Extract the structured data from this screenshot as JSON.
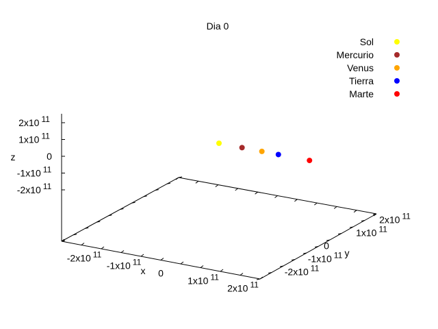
{
  "chart_data": {
    "type": "scatter",
    "title": "Dia 0",
    "xlabel": "x",
    "ylabel": "y",
    "zlabel": "z",
    "xlim": [
      -250000000000.0,
      250000000000.0
    ],
    "ylim": [
      -250000000000.0,
      250000000000.0
    ],
    "zlim": [
      -250000000000.0,
      250000000000.0
    ],
    "x_ticks": [
      {
        "value": -200000000000.0,
        "mantissa": "-2x10",
        "exp": "11"
      },
      {
        "value": -100000000000.0,
        "mantissa": "-1x10",
        "exp": "11"
      },
      {
        "value": 0,
        "mantissa": "0",
        "exp": ""
      },
      {
        "value": 100000000000.0,
        "mantissa": "1x10",
        "exp": "11"
      },
      {
        "value": 200000000000.0,
        "mantissa": "2x10",
        "exp": "11"
      }
    ],
    "y_ticks": [
      {
        "value": -200000000000.0,
        "mantissa": "-2x10",
        "exp": "11"
      },
      {
        "value": -100000000000.0,
        "mantissa": "-1x10",
        "exp": "11"
      },
      {
        "value": 0,
        "mantissa": "0",
        "exp": ""
      },
      {
        "value": 100000000000.0,
        "mantissa": "1x10",
        "exp": "11"
      },
      {
        "value": 200000000000.0,
        "mantissa": "2x10",
        "exp": "11"
      }
    ],
    "z_ticks": [
      {
        "value": 200000000000.0,
        "mantissa": "2x10",
        "exp": "11"
      },
      {
        "value": 100000000000.0,
        "mantissa": "1x10",
        "exp": "11"
      },
      {
        "value": 0,
        "mantissa": "0",
        "exp": ""
      },
      {
        "value": -100000000000.0,
        "mantissa": "-1x10",
        "exp": "11"
      },
      {
        "value": -200000000000.0,
        "mantissa": "-2x10",
        "exp": "11"
      }
    ],
    "legend_position": "top-right",
    "grid": false,
    "series": [
      {
        "name": "Sol",
        "color": "#ffff00",
        "x": 0,
        "y": 0,
        "z": 0
      },
      {
        "name": "Mercurio",
        "color": "#a52a2a",
        "x": 58000000000.0,
        "y": 0,
        "z": 0
      },
      {
        "name": "Venus",
        "color": "#ffa500",
        "x": 108000000000.0,
        "y": 0,
        "z": 0
      },
      {
        "name": "Tierra",
        "color": "#0000ff",
        "x": 149600000000.0,
        "y": 0,
        "z": 0
      },
      {
        "name": "Marte",
        "color": "#ff0000",
        "x": 228000000000.0,
        "y": 0,
        "z": 0
      }
    ]
  }
}
